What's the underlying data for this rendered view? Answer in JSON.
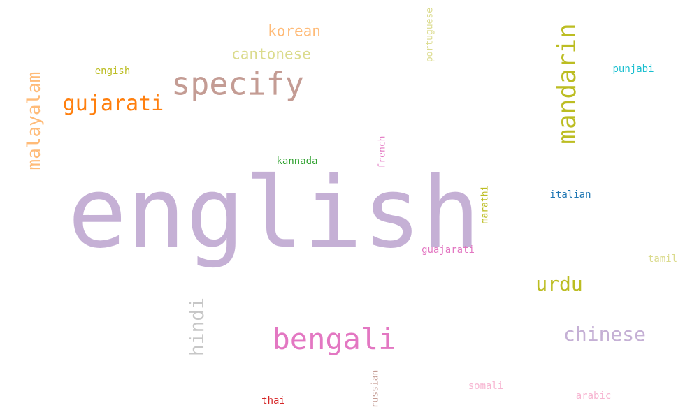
{
  "words": {
    "english_large": {
      "text": "english",
      "color": "#c5b0d5"
    },
    "specify": {
      "text": "specify",
      "color": "#c49c94"
    },
    "mandarin": {
      "text": "mandarin",
      "color": "#bcbd22"
    },
    "gujarati": {
      "text": "gujarati",
      "color": "#ff7f0e"
    },
    "malayalam": {
      "text": "malayalam",
      "color": "#ffbb78"
    },
    "bengali": {
      "text": "bengali",
      "color": "#e377c2"
    },
    "urdu": {
      "text": "urdu",
      "color": "#bcbd22"
    },
    "chinese": {
      "text": "chinese",
      "color": "#c5b0d5"
    },
    "hindi": {
      "text": "hindi",
      "color": "#c7c7c7"
    },
    "korean": {
      "text": "korean",
      "color": "#ffbb78"
    },
    "cantonese": {
      "text": "cantonese",
      "color": "#dbdb8d"
    },
    "english_small": {
      "text": "engish",
      "color": "#bcbd22"
    },
    "portuguese": {
      "text": "portuguese",
      "color": "#dbdb8d"
    },
    "punjabi": {
      "text": "punjabi",
      "color": "#17becf"
    },
    "kannada": {
      "text": "kannada",
      "color": "#2ca02c"
    },
    "french": {
      "text": "french",
      "color": "#e377c2"
    },
    "marathi": {
      "text": "marathi",
      "color": "#bcbd22"
    },
    "italian": {
      "text": "italian",
      "color": "#1f77b4"
    },
    "guajarati": {
      "text": "guajarati",
      "color": "#e377c2"
    },
    "tamil": {
      "text": "tamil",
      "color": "#dbdb8d"
    },
    "somali": {
      "text": "somali",
      "color": "#f7b6d2"
    },
    "arabic": {
      "text": "arabic",
      "color": "#f7b6d2"
    },
    "thai": {
      "text": "thai",
      "color": "#d62728"
    },
    "russian": {
      "text": "russian",
      "color": "#c49c94"
    }
  }
}
